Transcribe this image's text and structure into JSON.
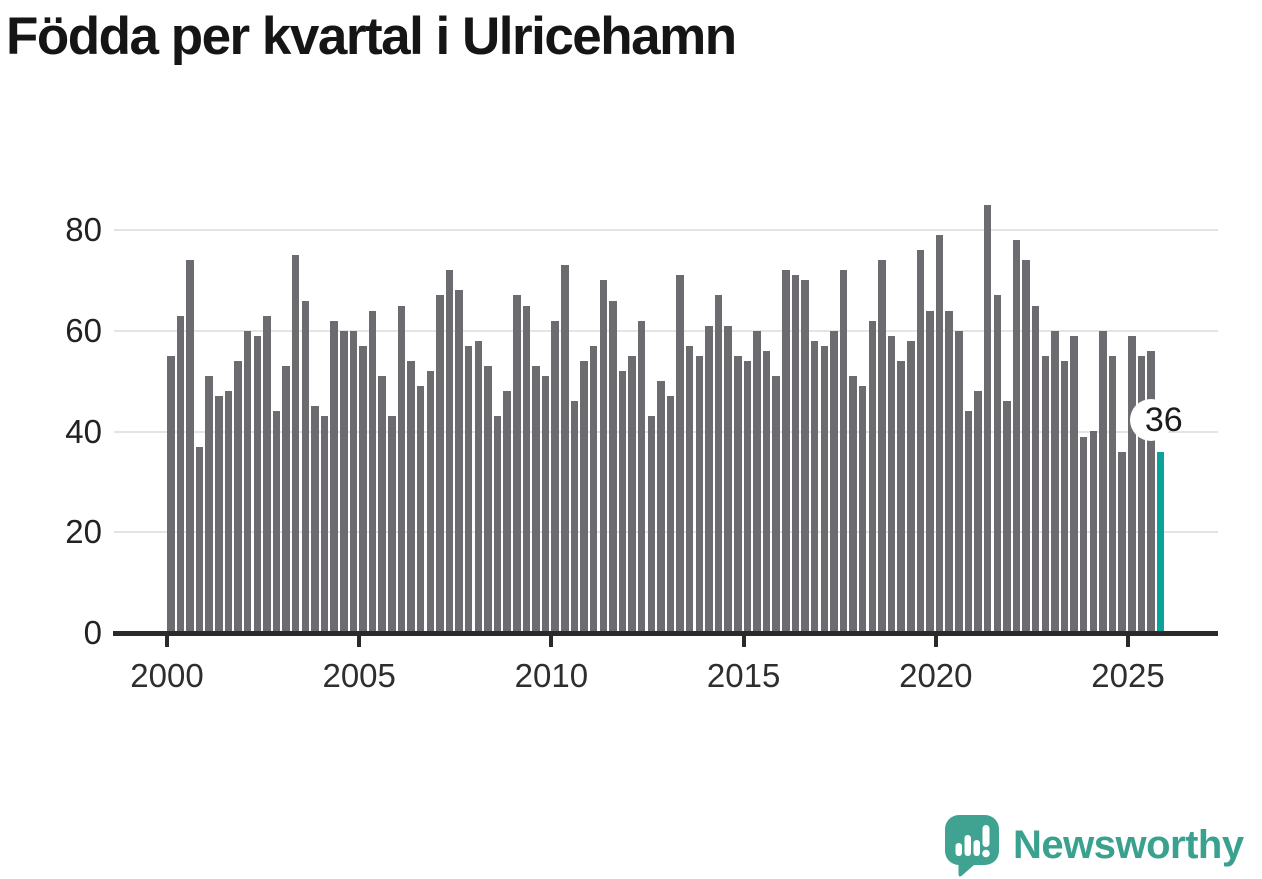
{
  "title": "Födda per kvartal i Ulricehamn",
  "chart_data": {
    "type": "bar",
    "title": "Födda per kvartal i Ulricehamn",
    "x_unit": "quarter",
    "start_year": 2000,
    "start_quarter": "Q1",
    "end_year": 2025,
    "end_quarter": "Q4",
    "values": [
      55,
      63,
      74,
      37,
      51,
      47,
      48,
      54,
      60,
      59,
      63,
      44,
      53,
      75,
      66,
      45,
      43,
      62,
      60,
      60,
      57,
      64,
      51,
      43,
      65,
      54,
      49,
      52,
      67,
      72,
      68,
      57,
      58,
      53,
      43,
      48,
      67,
      65,
      53,
      51,
      62,
      73,
      46,
      54,
      57,
      70,
      66,
      52,
      55,
      62,
      43,
      50,
      47,
      71,
      57,
      55,
      61,
      67,
      61,
      55,
      54,
      60,
      56,
      51,
      72,
      71,
      70,
      58,
      57,
      60,
      72,
      51,
      49,
      62,
      74,
      59,
      54,
      58,
      76,
      64,
      79,
      64,
      60,
      44,
      48,
      85,
      67,
      46,
      78,
      74,
      65,
      55,
      60,
      54,
      59,
      39,
      40,
      60,
      55,
      36,
      59,
      55,
      56,
      36
    ],
    "highlight_index": 103,
    "highlight_value_label": "36",
    "bar_color": "#6c6b70",
    "highlight_color": "#0aa39c",
    "x_tick_labels": [
      "2000",
      "2005",
      "2010",
      "2015",
      "2020",
      "2025"
    ],
    "y_tick_labels": [
      "0",
      "20",
      "40",
      "60",
      "80"
    ],
    "y_tick_values": [
      0,
      20,
      40,
      60,
      80
    ],
    "ylim": [
      0,
      88
    ],
    "grid": "horizontal",
    "legend": "none"
  },
  "annotation": {
    "last_value_label": "36"
  },
  "branding": {
    "logo_text": "Newsworthy",
    "logo_color": "#3aa18e",
    "logo_icon": "newsworthy-speech-bubble-chart-icon"
  }
}
